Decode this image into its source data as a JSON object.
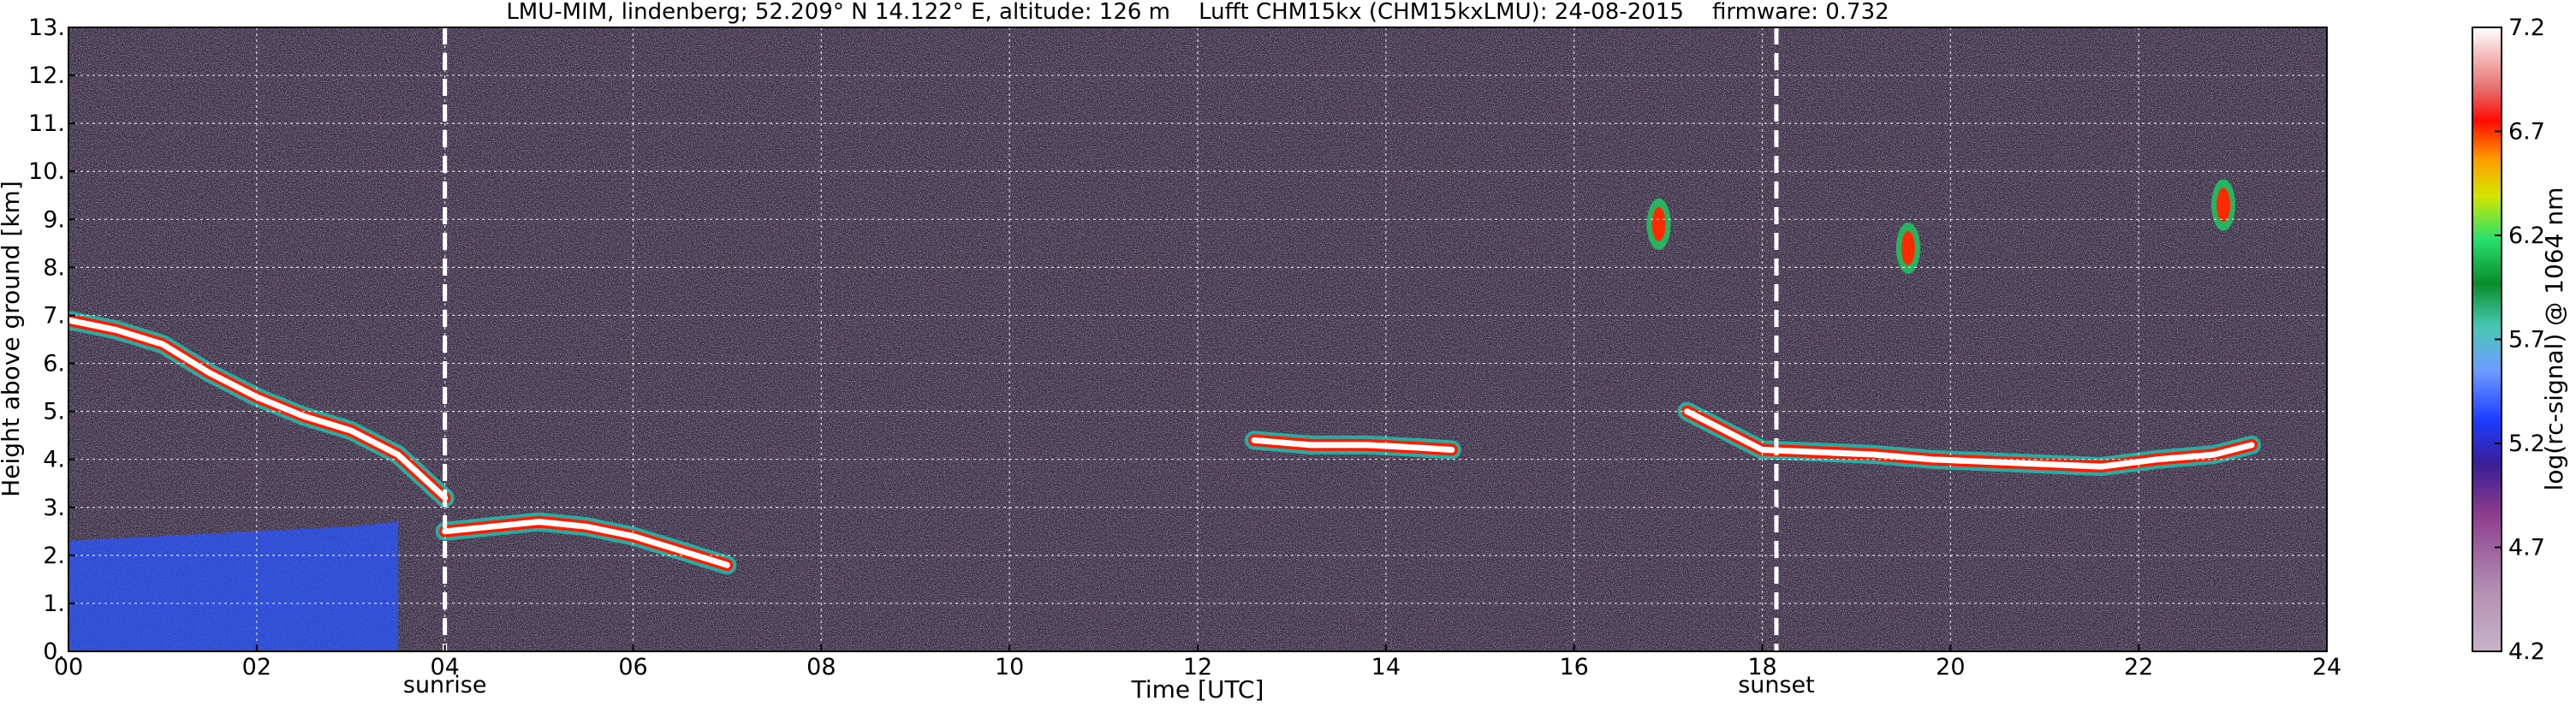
{
  "chart_data": {
    "type": "heatmap",
    "title": "LMU-MIM, lindenberg; 52.209° N 14.122° E, altitude: 126 m    Lufft CHM15kx (CHM15kxLMU): 24-08-2015    firmware: 0.732",
    "xlabel": "Time [UTC]",
    "ylabel": "Height above ground [km]",
    "xlim": [
      0,
      24
    ],
    "ylim": [
      0,
      13
    ],
    "x_ticks": [
      0,
      2,
      4,
      6,
      8,
      10,
      12,
      14,
      16,
      18,
      20,
      22,
      24
    ],
    "x_tick_labels": [
      "00",
      "02",
      "04",
      "06",
      "08",
      "10",
      "12",
      "14",
      "16",
      "18",
      "20",
      "22",
      "24"
    ],
    "y_ticks": [
      0,
      1,
      2,
      3,
      4,
      5,
      6,
      7,
      8,
      9,
      10,
      11,
      12,
      13
    ],
    "y_tick_labels": [
      "0.",
      "1.",
      "2.",
      "3.",
      "4.",
      "5.",
      "6.",
      "7.",
      "8.",
      "9.",
      "10.",
      "11.",
      "12.",
      "13."
    ],
    "grid": true,
    "annotations": [
      {
        "text": "sunrise",
        "x": 4.0
      },
      {
        "text": "sunset",
        "x": 18.15
      }
    ],
    "colorbar": {
      "label": "log(rc-signal) @ 1064 nm",
      "range": [
        4.2,
        7.2
      ],
      "ticks": [
        4.2,
        4.7,
        5.2,
        5.7,
        6.2,
        6.7,
        7.2
      ],
      "tick_labels": [
        "4.2",
        "4.7",
        "5.2",
        "5.7",
        "6.2",
        "6.7",
        "7.2"
      ]
    },
    "features": [
      {
        "kind": "boundary-layer",
        "x": [
          0,
          1,
          2,
          3,
          3.5
        ],
        "top": [
          2.3,
          2.4,
          2.5,
          2.6,
          2.7
        ]
      },
      {
        "kind": "cloud",
        "x": [
          0,
          0.5,
          1,
          1.5,
          2,
          2.5,
          3,
          3.5,
          4
        ],
        "y": [
          6.9,
          6.7,
          6.4,
          5.8,
          5.3,
          4.9,
          4.6,
          4.1,
          3.2
        ]
      },
      {
        "kind": "cloud",
        "x": [
          4,
          4.5,
          5,
          5.5,
          6,
          6.5,
          7
        ],
        "y": [
          2.5,
          2.6,
          2.7,
          2.6,
          2.4,
          2.1,
          1.8
        ]
      },
      {
        "kind": "cloud",
        "x": [
          12.6,
          13.2,
          13.8,
          14.3,
          14.7
        ],
        "y": [
          4.4,
          4.3,
          4.3,
          4.25,
          4.2
        ]
      },
      {
        "kind": "cloud",
        "x": [
          17.2,
          17.6,
          18.0,
          18.6,
          19.2,
          19.8,
          20.4,
          21.0,
          21.6,
          22.2,
          22.8,
          23.2
        ],
        "y": [
          5.0,
          4.6,
          4.2,
          4.15,
          4.1,
          4.0,
          3.95,
          3.9,
          3.85,
          4.0,
          4.1,
          4.3
        ]
      },
      {
        "kind": "cirrus",
        "x": [
          22.9
        ],
        "y": [
          9.3
        ]
      },
      {
        "kind": "cirrus",
        "x": [
          19.55
        ],
        "y": [
          8.4
        ]
      },
      {
        "kind": "cirrus",
        "x": [
          16.9
        ],
        "y": [
          8.9
        ]
      }
    ]
  }
}
